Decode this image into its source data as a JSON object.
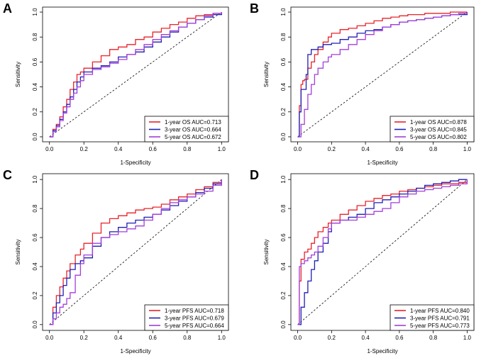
{
  "colors": {
    "one_year": "#e8232a",
    "three_year": "#1f1fb4",
    "five_year": "#a23fd9",
    "diagonal": "#000000",
    "axis": "#000000"
  },
  "chart_data": [
    {
      "type": "line",
      "panel_label": "A",
      "xlabel": "1-Specificity",
      "ylabel": "Sensitivity",
      "xlim": [
        0,
        1
      ],
      "ylim": [
        0,
        1
      ],
      "x_ticks": [
        "0.0",
        "0.2",
        "0.4",
        "0.6",
        "0.8",
        "1.0"
      ],
      "y_ticks": [
        "0.0",
        "0.2",
        "0.4",
        "0.6",
        "0.8",
        "1.0"
      ],
      "legend_position": "bottom-right",
      "series": [
        {
          "name": "1-year OS AUC=0.713",
          "color_key": "one_year",
          "x": [
            0,
            0.02,
            0.04,
            0.06,
            0.08,
            0.1,
            0.12,
            0.14,
            0.16,
            0.18,
            0.2,
            0.25,
            0.3,
            0.35,
            0.4,
            0.45,
            0.5,
            0.55,
            0.6,
            0.65,
            0.7,
            0.75,
            0.8,
            0.85,
            0.9,
            0.95,
            1.0
          ],
          "y": [
            0,
            0.06,
            0.1,
            0.16,
            0.24,
            0.3,
            0.38,
            0.44,
            0.5,
            0.52,
            0.55,
            0.6,
            0.65,
            0.7,
            0.72,
            0.74,
            0.78,
            0.8,
            0.84,
            0.87,
            0.9,
            0.92,
            0.95,
            0.97,
            0.98,
            0.99,
            1.0
          ]
        },
        {
          "name": "3-year OS AUC=0.664",
          "color_key": "three_year",
          "x": [
            0,
            0.02,
            0.04,
            0.06,
            0.08,
            0.1,
            0.12,
            0.14,
            0.16,
            0.18,
            0.2,
            0.25,
            0.3,
            0.35,
            0.4,
            0.45,
            0.5,
            0.55,
            0.6,
            0.65,
            0.7,
            0.75,
            0.8,
            0.85,
            0.9,
            0.95,
            1.0
          ],
          "y": [
            0,
            0.05,
            0.09,
            0.14,
            0.2,
            0.26,
            0.32,
            0.38,
            0.44,
            0.48,
            0.52,
            0.55,
            0.57,
            0.6,
            0.64,
            0.66,
            0.68,
            0.72,
            0.76,
            0.8,
            0.84,
            0.88,
            0.91,
            0.94,
            0.96,
            0.98,
            1.0
          ]
        },
        {
          "name": "5-year OS AUC=0.672",
          "color_key": "five_year",
          "x": [
            0,
            0.02,
            0.04,
            0.06,
            0.08,
            0.1,
            0.12,
            0.14,
            0.16,
            0.18,
            0.2,
            0.25,
            0.3,
            0.35,
            0.4,
            0.45,
            0.5,
            0.55,
            0.6,
            0.65,
            0.7,
            0.75,
            0.8,
            0.85,
            0.9,
            0.95,
            1.0
          ],
          "y": [
            0,
            0.04,
            0.08,
            0.13,
            0.19,
            0.24,
            0.3,
            0.35,
            0.4,
            0.45,
            0.5,
            0.54,
            0.56,
            0.59,
            0.62,
            0.66,
            0.7,
            0.74,
            0.78,
            0.82,
            0.85,
            0.88,
            0.91,
            0.94,
            0.97,
            0.99,
            1.0
          ]
        }
      ]
    },
    {
      "type": "line",
      "panel_label": "B",
      "xlabel": "1-Specificity",
      "ylabel": "Sensitivity",
      "xlim": [
        0,
        1
      ],
      "ylim": [
        0,
        1
      ],
      "x_ticks": [
        "0.0",
        "0.2",
        "0.4",
        "0.6",
        "0.8",
        "1.0"
      ],
      "y_ticks": [
        "0.0",
        "0.2",
        "0.4",
        "0.6",
        "0.8",
        "1.0"
      ],
      "legend_position": "bottom-right",
      "series": [
        {
          "name": "1-year OS AUC=0.878",
          "color_key": "one_year",
          "x": [
            0,
            0.01,
            0.02,
            0.03,
            0.04,
            0.06,
            0.08,
            0.1,
            0.12,
            0.15,
            0.18,
            0.2,
            0.25,
            0.3,
            0.35,
            0.4,
            0.45,
            0.5,
            0.55,
            0.6,
            0.65,
            0.7,
            0.75,
            0.8,
            0.85,
            0.9,
            0.95,
            1.0
          ],
          "y": [
            0,
            0.25,
            0.42,
            0.45,
            0.46,
            0.55,
            0.6,
            0.66,
            0.7,
            0.76,
            0.8,
            0.83,
            0.86,
            0.87,
            0.89,
            0.91,
            0.93,
            0.95,
            0.96,
            0.97,
            0.98,
            0.98,
            0.99,
            0.99,
            0.99,
            1.0,
            1.0,
            1.0
          ]
        },
        {
          "name": "3-year OS AUC=0.845",
          "color_key": "three_year",
          "x": [
            0,
            0.01,
            0.02,
            0.03,
            0.04,
            0.05,
            0.06,
            0.08,
            0.1,
            0.12,
            0.15,
            0.2,
            0.25,
            0.3,
            0.35,
            0.4,
            0.45,
            0.5,
            0.55,
            0.6,
            0.65,
            0.7,
            0.75,
            0.8,
            0.85,
            0.9,
            0.95,
            1.0
          ],
          "y": [
            0,
            0.2,
            0.38,
            0.38,
            0.38,
            0.5,
            0.66,
            0.7,
            0.7,
            0.72,
            0.74,
            0.75,
            0.78,
            0.8,
            0.83,
            0.85,
            0.86,
            0.88,
            0.9,
            0.92,
            0.93,
            0.94,
            0.95,
            0.96,
            0.97,
            0.98,
            0.98,
            1.0
          ]
        },
        {
          "name": "5-year OS AUC=0.802",
          "color_key": "five_year",
          "x": [
            0,
            0.02,
            0.04,
            0.06,
            0.08,
            0.1,
            0.12,
            0.15,
            0.18,
            0.2,
            0.25,
            0.3,
            0.35,
            0.4,
            0.45,
            0.5,
            0.55,
            0.6,
            0.65,
            0.7,
            0.75,
            0.8,
            0.85,
            0.9,
            0.95,
            1.0
          ],
          "y": [
            0,
            0.1,
            0.22,
            0.34,
            0.42,
            0.5,
            0.55,
            0.6,
            0.64,
            0.66,
            0.7,
            0.74,
            0.78,
            0.82,
            0.85,
            0.88,
            0.9,
            0.92,
            0.93,
            0.94,
            0.95,
            0.96,
            0.97,
            0.98,
            0.99,
            1.0
          ]
        }
      ]
    },
    {
      "type": "line",
      "panel_label": "C",
      "xlabel": "1-Specificity",
      "ylabel": "Sensitivity",
      "xlim": [
        0,
        1
      ],
      "ylim": [
        0,
        1
      ],
      "x_ticks": [
        "0.0",
        "0.2",
        "0.4",
        "0.6",
        "0.8",
        "1.0"
      ],
      "y_ticks": [
        "0.0",
        "0.2",
        "0.4",
        "0.6",
        "0.8",
        "1.0"
      ],
      "legend_position": "bottom-right",
      "series": [
        {
          "name": "1-year PFS AUC=0.718",
          "color_key": "one_year",
          "x": [
            0,
            0.02,
            0.04,
            0.06,
            0.08,
            0.1,
            0.12,
            0.15,
            0.18,
            0.2,
            0.25,
            0.3,
            0.35,
            0.4,
            0.45,
            0.5,
            0.55,
            0.6,
            0.65,
            0.7,
            0.75,
            0.8,
            0.85,
            0.9,
            0.95,
            1.0
          ],
          "y": [
            0,
            0.12,
            0.2,
            0.26,
            0.32,
            0.37,
            0.42,
            0.48,
            0.52,
            0.56,
            0.63,
            0.7,
            0.73,
            0.75,
            0.77,
            0.79,
            0.8,
            0.81,
            0.83,
            0.86,
            0.88,
            0.9,
            0.93,
            0.95,
            0.98,
            1.0
          ]
        },
        {
          "name": "3-year PFS AUC=0.679",
          "color_key": "three_year",
          "x": [
            0,
            0.02,
            0.04,
            0.06,
            0.08,
            0.1,
            0.12,
            0.15,
            0.18,
            0.2,
            0.25,
            0.3,
            0.35,
            0.4,
            0.45,
            0.5,
            0.55,
            0.6,
            0.65,
            0.7,
            0.75,
            0.8,
            0.85,
            0.9,
            0.95,
            1.0
          ],
          "y": [
            0,
            0.08,
            0.15,
            0.2,
            0.27,
            0.32,
            0.38,
            0.42,
            0.44,
            0.46,
            0.54,
            0.6,
            0.64,
            0.67,
            0.7,
            0.72,
            0.74,
            0.76,
            0.79,
            0.82,
            0.85,
            0.88,
            0.91,
            0.94,
            0.97,
            1.0
          ]
        },
        {
          "name": "5-year PFS AUC=0.664",
          "color_key": "five_year",
          "x": [
            0,
            0.02,
            0.04,
            0.06,
            0.08,
            0.1,
            0.12,
            0.15,
            0.18,
            0.2,
            0.25,
            0.3,
            0.35,
            0.4,
            0.45,
            0.5,
            0.55,
            0.6,
            0.65,
            0.7,
            0.75,
            0.8,
            0.85,
            0.9,
            0.95,
            1.0
          ],
          "y": [
            0,
            0.04,
            0.08,
            0.12,
            0.14,
            0.18,
            0.22,
            0.34,
            0.42,
            0.48,
            0.56,
            0.6,
            0.62,
            0.64,
            0.66,
            0.68,
            0.72,
            0.76,
            0.8,
            0.84,
            0.86,
            0.88,
            0.9,
            0.92,
            0.96,
            1.0
          ]
        }
      ]
    },
    {
      "type": "line",
      "panel_label": "D",
      "xlabel": "1-Specificity",
      "ylabel": "Sensitivity",
      "xlim": [
        0,
        1
      ],
      "ylim": [
        0,
        1
      ],
      "x_ticks": [
        "0.0",
        "0.2",
        "0.4",
        "0.6",
        "0.8",
        "1.0"
      ],
      "y_ticks": [
        "0.0",
        "0.2",
        "0.4",
        "0.6",
        "0.8",
        "1.0"
      ],
      "legend_position": "bottom-right",
      "series": [
        {
          "name": "1-year PFS AUC=0.840",
          "color_key": "one_year",
          "x": [
            0,
            0.01,
            0.02,
            0.04,
            0.06,
            0.08,
            0.1,
            0.12,
            0.15,
            0.18,
            0.2,
            0.25,
            0.3,
            0.35,
            0.4,
            0.45,
            0.5,
            0.55,
            0.6,
            0.65,
            0.7,
            0.75,
            0.8,
            0.85,
            0.9,
            0.95,
            1.0
          ],
          "y": [
            0,
            0.3,
            0.45,
            0.5,
            0.52,
            0.56,
            0.6,
            0.64,
            0.67,
            0.7,
            0.72,
            0.76,
            0.79,
            0.82,
            0.85,
            0.87,
            0.89,
            0.9,
            0.92,
            0.93,
            0.94,
            0.95,
            0.96,
            0.97,
            0.97,
            0.98,
            1.0
          ]
        },
        {
          "name": "3-year PFS AUC=0.791",
          "color_key": "three_year",
          "x": [
            0,
            0.02,
            0.04,
            0.06,
            0.08,
            0.1,
            0.12,
            0.15,
            0.18,
            0.2,
            0.25,
            0.3,
            0.35,
            0.4,
            0.45,
            0.5,
            0.55,
            0.6,
            0.65,
            0.7,
            0.75,
            0.8,
            0.85,
            0.9,
            0.95,
            1.0
          ],
          "y": [
            0,
            0.12,
            0.22,
            0.3,
            0.38,
            0.44,
            0.5,
            0.56,
            0.64,
            0.7,
            0.72,
            0.74,
            0.76,
            0.8,
            0.84,
            0.86,
            0.88,
            0.9,
            0.92,
            0.94,
            0.96,
            0.97,
            0.98,
            0.99,
            1.0,
            1.0
          ]
        },
        {
          "name": "5-year PFS AUC=0.773",
          "color_key": "five_year",
          "x": [
            0,
            0.01,
            0.02,
            0.04,
            0.06,
            0.08,
            0.1,
            0.12,
            0.15,
            0.18,
            0.2,
            0.25,
            0.3,
            0.35,
            0.4,
            0.45,
            0.5,
            0.55,
            0.6,
            0.65,
            0.7,
            0.75,
            0.8,
            0.85,
            0.9,
            0.95,
            1.0
          ],
          "y": [
            0,
            0.4,
            0.42,
            0.44,
            0.46,
            0.48,
            0.5,
            0.54,
            0.6,
            0.66,
            0.7,
            0.72,
            0.72,
            0.74,
            0.76,
            0.78,
            0.8,
            0.84,
            0.88,
            0.9,
            0.92,
            0.93,
            0.94,
            0.95,
            0.96,
            0.97,
            1.0
          ]
        }
      ]
    }
  ]
}
